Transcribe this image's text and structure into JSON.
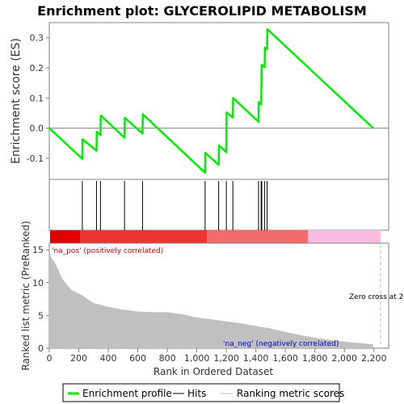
{
  "chart_data": {
    "type": "line",
    "title": "Enrichment plot: GLYCEROLIPID METABOLISM",
    "ylabel": "Enrichment score (ES)",
    "ylabel_bottom": "Ranked list metric (PreRanked)",
    "xlabel": "Rank in Ordered Dataset",
    "xlim": [
      0,
      2300
    ],
    "ylim": [
      -0.17,
      0.35
    ],
    "ylim_bottom": [
      0,
      16
    ],
    "x_ticks": [
      "0",
      "200",
      "400",
      "600",
      "800",
      "1,000",
      "1,200",
      "1,400",
      "1,600",
      "1,800",
      "2,000",
      "2,200"
    ],
    "y_ticks": [
      "-0.1",
      "0.0",
      "0.1",
      "0.2",
      "0.3"
    ],
    "y_ticks_bottom": [
      "0",
      "5",
      "10",
      "15"
    ],
    "series": [
      {
        "name": "Enrichment profile",
        "color": "#00ee00",
        "x": [
          0,
          224,
          226,
          320,
          322,
          347,
          349,
          510,
          512,
          632,
          634,
          1056,
          1058,
          1148,
          1150,
          1200,
          1202,
          1244,
          1246,
          1418,
          1420,
          1436,
          1438,
          1440,
          1460,
          1462,
          1476,
          1478,
          2195
        ],
        "y": [
          0.0,
          -0.102,
          -0.037,
          -0.075,
          -0.012,
          -0.023,
          0.042,
          -0.032,
          0.034,
          -0.018,
          0.046,
          -0.148,
          -0.082,
          -0.122,
          -0.057,
          -0.08,
          0.052,
          0.035,
          0.1,
          0.021,
          0.087,
          0.078,
          0.143,
          0.21,
          0.202,
          0.267,
          0.262,
          0.328,
          0.0
        ]
      }
    ],
    "hits": [
      224,
      320,
      347,
      510,
      632,
      1056,
      1148,
      1200,
      1244,
      1418,
      1436,
      1440,
      1460,
      1476
    ],
    "zero_cross_label": "Zero cross at 2",
    "pos_label": "'na_pos' (positively correlated)",
    "neg_label": "'na_neg' (negatively correlated)",
    "legend": [
      "Enrichment profile",
      "Hits",
      "Ranking metric scores"
    ],
    "legend_placement": "bottom",
    "metric_profile": {
      "rank": [
        0,
        10,
        40,
        90,
        150,
        220,
        300,
        400,
        500,
        600,
        700,
        800,
        900,
        1000,
        1100,
        1200,
        1300,
        1400,
        1500,
        1600,
        1700,
        1800,
        1900,
        2000,
        2100,
        2195
      ],
      "score": [
        15.2,
        13.9,
        13.0,
        10.5,
        8.9,
        8.1,
        6.9,
        6.3,
        5.9,
        5.6,
        5.5,
        5.5,
        5.2,
        4.7,
        4.4,
        4.1,
        3.8,
        3.4,
        3.0,
        2.5,
        2.0,
        1.6,
        1.3,
        1.0,
        0.8,
        0.6
      ]
    },
    "colors": {
      "profile": "#00ee00",
      "hits": "#000000",
      "metric_fill": "#c0c0c0",
      "pos_text": "#cc0000",
      "neg_text": "#0000cc",
      "axis": "#808080"
    }
  }
}
